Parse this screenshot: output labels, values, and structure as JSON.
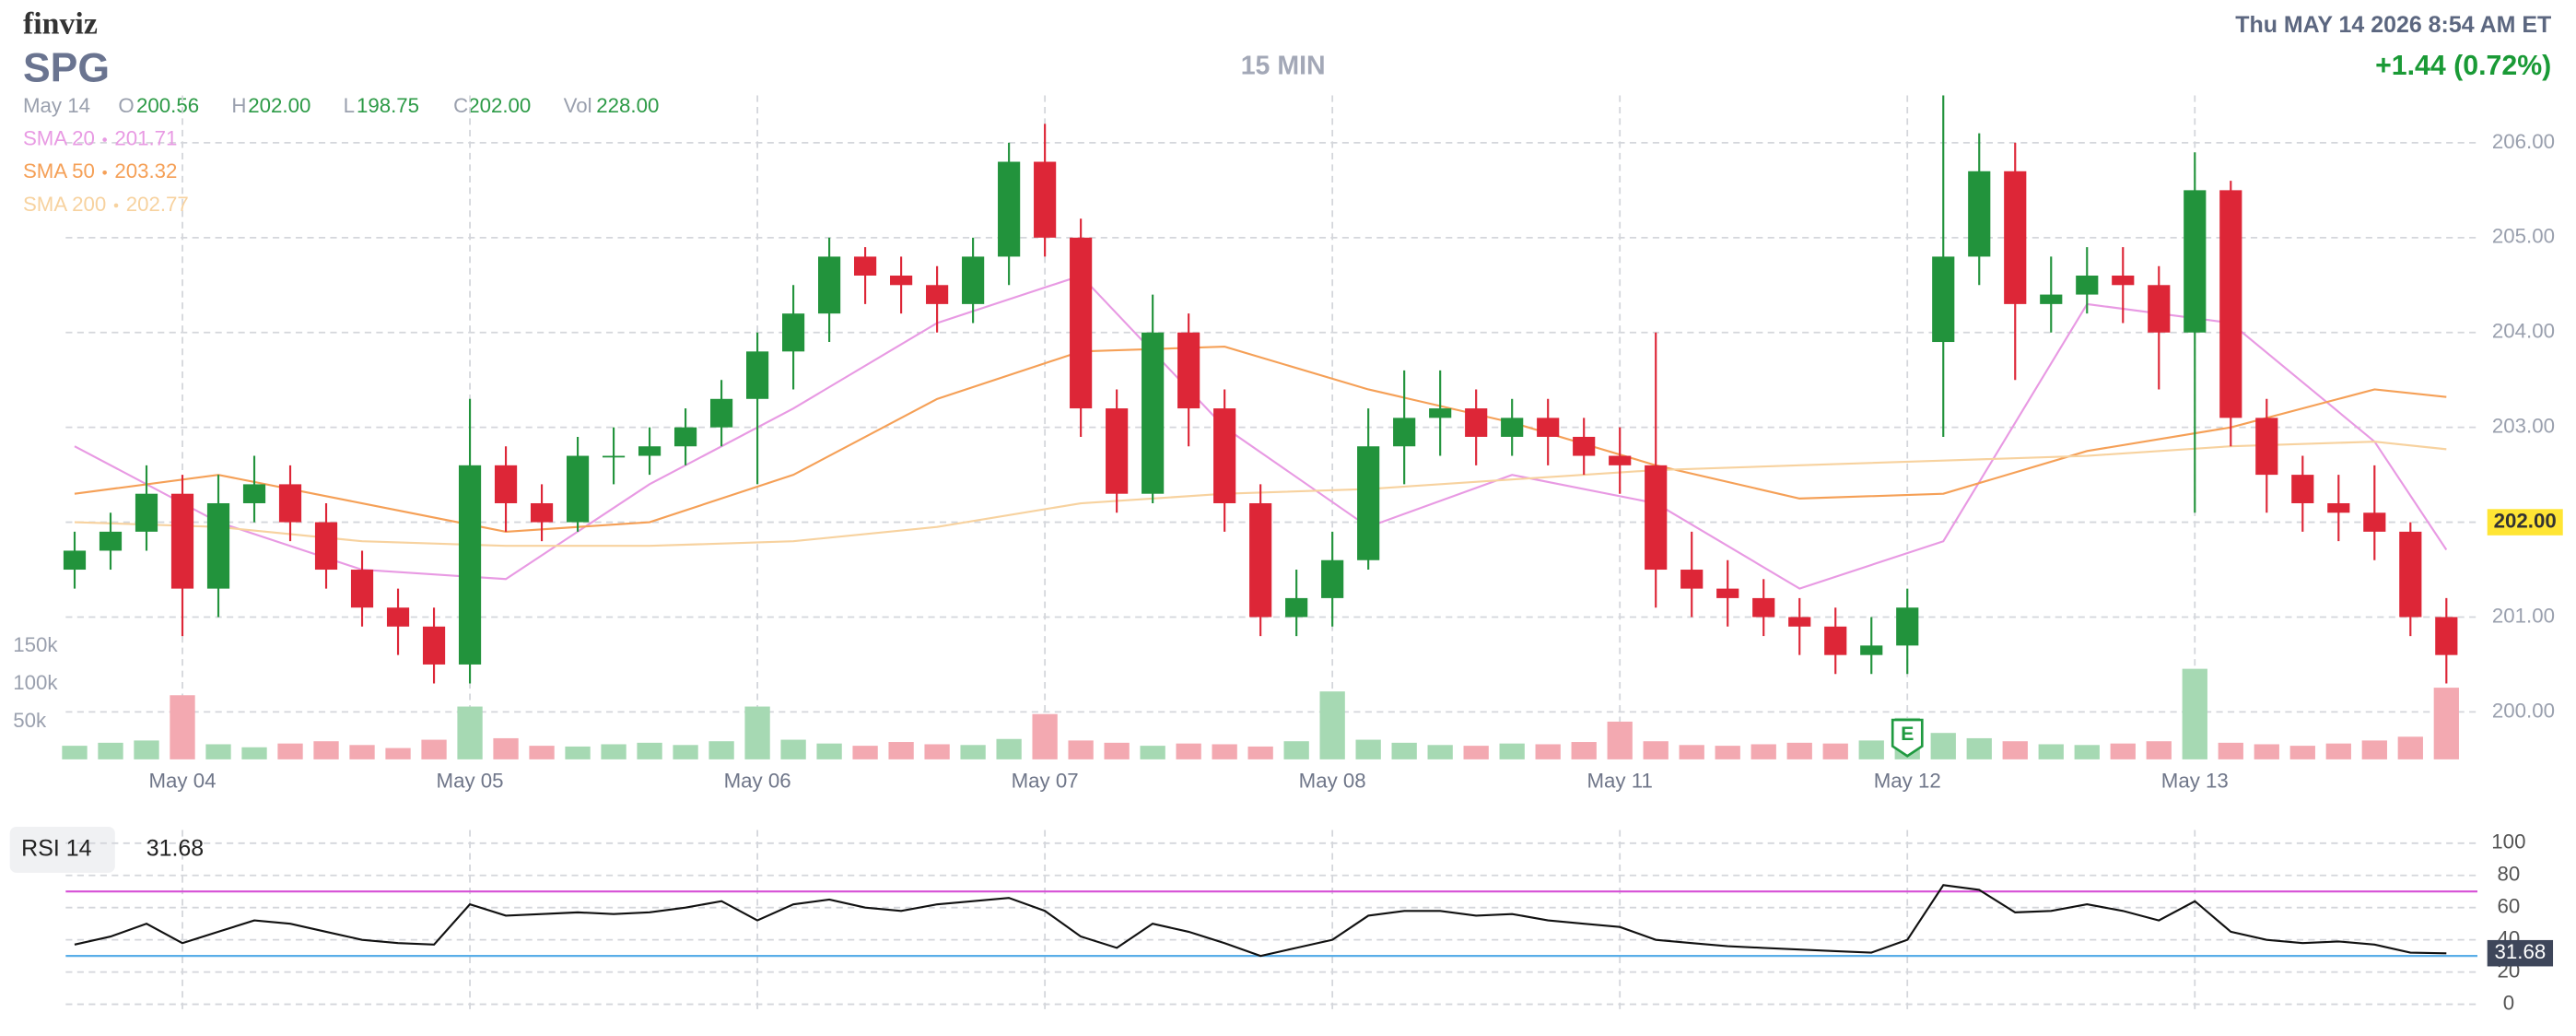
{
  "header": {
    "logo": "finviz",
    "ticker": "SPG",
    "interval": "15 MIN",
    "datetime": "Thu MAY 14 2026 8:54 AM ET",
    "change": "+1.44 (0.72%)",
    "ohlc": {
      "date": "May 14",
      "o_label": "O",
      "o": "200.56",
      "h_label": "H",
      "h": "202.00",
      "l_label": "L",
      "l": "198.75",
      "c_label": "C",
      "c": "202.00",
      "vol_label": "Vol",
      "vol": "228.00"
    }
  },
  "chart_data": [
    {
      "type": "candlestick",
      "x": [
        -0.375,
        -0.25,
        -0.125,
        0,
        0.125,
        0.25,
        0.375,
        0.5,
        0.625,
        0.75,
        0.875,
        1,
        1.125,
        1.25,
        1.375,
        1.5,
        1.625,
        1.75,
        1.875,
        2,
        2.125,
        2.25,
        2.375,
        2.5,
        2.625,
        2.75,
        2.875,
        3,
        3.125,
        3.25,
        3.375,
        3.5,
        3.625,
        3.75,
        3.875,
        4,
        4.125,
        4.25,
        4.375,
        4.5,
        4.625,
        4.75,
        4.875,
        5,
        5.125,
        5.25,
        5.375,
        5.5,
        5.625,
        5.75,
        5.875,
        6,
        6.125,
        6.25,
        6.375,
        6.5,
        6.625,
        6.75,
        6.875,
        7,
        7.125,
        7.25,
        7.375,
        7.5,
        7.625,
        7.75,
        7.875
      ],
      "open": [
        201.5,
        201.7,
        201.9,
        202.3,
        201.3,
        202.2,
        202.4,
        202.0,
        201.5,
        201.1,
        200.9,
        200.5,
        202.6,
        202.2,
        202.0,
        202.7,
        202.7,
        202.8,
        203.0,
        203.3,
        203.8,
        204.2,
        204.8,
        204.6,
        204.5,
        204.3,
        204.8,
        205.8,
        205.0,
        203.2,
        202.3,
        204.0,
        203.2,
        202.2,
        201.0,
        201.2,
        201.6,
        202.8,
        203.1,
        203.2,
        202.9,
        203.1,
        202.9,
        202.7,
        202.6,
        201.5,
        201.3,
        201.2,
        201.0,
        200.9,
        200.6,
        200.7,
        203.9,
        204.8,
        205.7,
        204.3,
        204.4,
        204.6,
        204.5,
        204.0,
        205.5,
        203.1,
        202.5,
        202.2,
        202.1,
        201.9,
        201.0
      ],
      "high": [
        201.9,
        202.1,
        202.6,
        202.5,
        202.5,
        202.7,
        202.6,
        202.2,
        201.7,
        201.3,
        201.1,
        203.3,
        202.8,
        202.4,
        202.9,
        203.0,
        203.0,
        203.2,
        203.5,
        204.0,
        204.5,
        205.0,
        204.9,
        204.8,
        204.7,
        205.0,
        206.0,
        206.2,
        205.2,
        203.4,
        204.4,
        204.2,
        203.4,
        202.4,
        201.5,
        201.9,
        203.2,
        203.6,
        203.6,
        203.4,
        203.3,
        203.3,
        203.1,
        203.0,
        204.0,
        201.9,
        201.6,
        201.4,
        201.2,
        201.1,
        201.0,
        201.3,
        206.5,
        206.1,
        206.0,
        204.8,
        204.9,
        204.9,
        204.7,
        205.9,
        205.6,
        203.3,
        202.7,
        202.5,
        202.6,
        202.0,
        201.2
      ],
      "low": [
        201.3,
        201.5,
        201.7,
        200.8,
        201.0,
        202.0,
        201.8,
        201.3,
        200.9,
        200.6,
        200.3,
        200.3,
        201.9,
        201.8,
        201.9,
        202.4,
        202.5,
        202.6,
        202.8,
        202.4,
        203.4,
        203.9,
        204.3,
        204.2,
        204.0,
        204.1,
        204.5,
        204.8,
        202.9,
        202.1,
        202.2,
        202.8,
        201.9,
        200.8,
        200.8,
        200.9,
        201.5,
        202.4,
        202.7,
        202.6,
        202.7,
        202.6,
        202.5,
        202.3,
        201.1,
        201.0,
        200.9,
        200.8,
        200.6,
        200.4,
        200.4,
        200.4,
        202.9,
        204.5,
        203.5,
        204.0,
        204.2,
        204.1,
        203.4,
        202.1,
        202.8,
        202.1,
        201.9,
        201.8,
        201.6,
        200.8,
        200.3
      ],
      "close": [
        201.7,
        201.9,
        202.3,
        201.3,
        202.2,
        202.4,
        202.0,
        201.5,
        201.1,
        200.9,
        200.5,
        202.6,
        202.2,
        202.0,
        202.7,
        202.7,
        202.8,
        203.0,
        203.3,
        203.8,
        204.2,
        204.8,
        204.6,
        204.5,
        204.3,
        204.8,
        205.8,
        205.0,
        203.2,
        202.3,
        204.0,
        203.2,
        202.2,
        201.0,
        201.2,
        201.6,
        202.8,
        203.1,
        203.2,
        202.9,
        203.1,
        202.9,
        202.7,
        202.6,
        201.5,
        201.3,
        201.2,
        201.0,
        200.9,
        200.6,
        200.7,
        201.1,
        204.8,
        205.7,
        204.3,
        204.4,
        204.6,
        204.5,
        204.0,
        205.5,
        203.1,
        202.5,
        202.2,
        202.1,
        201.9,
        201.0,
        200.6
      ],
      "volume": [
        18000,
        22000,
        25000,
        85000,
        20000,
        16000,
        21000,
        24000,
        19000,
        15000,
        26000,
        70000,
        28000,
        18000,
        17000,
        20000,
        22000,
        19000,
        24000,
        70000,
        26000,
        21000,
        18000,
        23000,
        20000,
        19000,
        27000,
        60000,
        25000,
        22000,
        18000,
        21000,
        20000,
        17000,
        24000,
        90000,
        26000,
        22000,
        19000,
        18000,
        21000,
        20000,
        23000,
        50000,
        24000,
        19000,
        18000,
        20000,
        22000,
        21000,
        25000,
        55000,
        35000,
        28000,
        24000,
        20000,
        19000,
        21000,
        24000,
        120000,
        22000,
        20000,
        18000,
        21000,
        25000,
        30000,
        95000
      ],
      "xlim": [
        -0.406,
        7.983
      ],
      "xticks": [
        {
          "value": 0,
          "label": "May 04"
        },
        {
          "value": 1,
          "label": "May 05"
        },
        {
          "value": 2,
          "label": "May 06"
        },
        {
          "value": 3,
          "label": "May 07"
        },
        {
          "value": 4,
          "label": "May 08"
        },
        {
          "value": 5,
          "label": "May 11"
        },
        {
          "value": 6,
          "label": "May 12"
        },
        {
          "value": 7,
          "label": "May 13"
        }
      ],
      "ylim": [
        199.5,
        206.5
      ],
      "yticks": [
        {
          "value": 200,
          "label": "200.00"
        },
        {
          "value": 201,
          "label": "201.00"
        },
        {
          "value": 202,
          "label": "202.00"
        },
        {
          "value": 203,
          "label": "203.00"
        },
        {
          "value": 204,
          "label": "204.00"
        },
        {
          "value": 205,
          "label": "205.00"
        },
        {
          "value": 206,
          "label": "206.00"
        }
      ],
      "volume_ylim": [
        0,
        880000
      ],
      "volume_ticks": [
        {
          "value": 50000,
          "label": "50k"
        },
        {
          "value": 100000,
          "label": "100k"
        },
        {
          "value": 150000,
          "label": "150k"
        }
      ],
      "up_color": "#22933c",
      "down_color": "#dd2637",
      "up_volume_color": "#a6d9b3",
      "down_volume_color": "#f3a9b1",
      "grid": true,
      "last_price": {
        "value": 202,
        "label": "202.00",
        "color": "#ffe534"
      },
      "event": {
        "x": 6.0,
        "label": "E",
        "color": "#1f9a40"
      },
      "overlays": [
        {
          "name": "SMA 20",
          "value_label": "201.71",
          "color": "#e89ae3",
          "x": [
            -0.375,
            0.125,
            0.625,
            1.125,
            1.625,
            2.125,
            2.625,
            3.125,
            3.625,
            4.125,
            4.625,
            5.125,
            5.625,
            6.125,
            6.625,
            7.125,
            7.625,
            7.875
          ],
          "values": [
            202.8,
            202.0,
            201.5,
            201.4,
            202.4,
            203.2,
            204.1,
            204.6,
            203.0,
            201.95,
            202.5,
            202.2,
            201.3,
            201.8,
            204.3,
            204.1,
            202.85,
            201.71
          ]
        },
        {
          "name": "SMA 50",
          "value_label": "203.32",
          "color": "#f5a057",
          "x": [
            -0.375,
            0.125,
            0.625,
            1.125,
            1.625,
            2.125,
            2.625,
            3.125,
            3.625,
            4.125,
            4.625,
            5.125,
            5.625,
            6.125,
            6.625,
            7.125,
            7.625,
            7.875
          ],
          "values": [
            202.3,
            202.5,
            202.2,
            201.9,
            202.0,
            202.5,
            203.3,
            203.8,
            203.85,
            203.4,
            203.05,
            202.6,
            202.25,
            202.3,
            202.75,
            203.0,
            203.4,
            203.32
          ]
        },
        {
          "name": "SMA 200",
          "value_label": "202.77",
          "color": "#f7d29f",
          "x": [
            -0.375,
            0.125,
            0.625,
            1.125,
            1.625,
            2.125,
            2.625,
            3.125,
            3.625,
            4.125,
            4.625,
            5.125,
            5.625,
            6.125,
            6.625,
            7.125,
            7.625,
            7.875
          ],
          "values": [
            202.0,
            201.95,
            201.8,
            201.75,
            201.75,
            201.8,
            201.95,
            202.2,
            202.3,
            202.35,
            202.45,
            202.55,
            202.6,
            202.65,
            202.7,
            202.8,
            202.85,
            202.77
          ]
        }
      ]
    },
    {
      "type": "line",
      "name": "RSI 14",
      "value_label": "31.68",
      "color": "#111111",
      "x": [
        -0.375,
        -0.25,
        -0.125,
        0,
        0.125,
        0.25,
        0.375,
        0.5,
        0.625,
        0.75,
        0.875,
        1,
        1.125,
        1.25,
        1.375,
        1.5,
        1.625,
        1.75,
        1.875,
        2,
        2.125,
        2.25,
        2.375,
        2.5,
        2.625,
        2.75,
        2.875,
        3,
        3.125,
        3.25,
        3.375,
        3.5,
        3.625,
        3.75,
        3.875,
        4,
        4.125,
        4.25,
        4.375,
        4.5,
        4.625,
        4.75,
        4.875,
        5,
        5.125,
        5.25,
        5.375,
        5.5,
        5.625,
        5.75,
        5.875,
        6,
        6.125,
        6.25,
        6.375,
        6.5,
        6.625,
        6.75,
        6.875,
        7,
        7.125,
        7.25,
        7.375,
        7.5,
        7.625,
        7.75,
        7.875
      ],
      "values": [
        37,
        42,
        50,
        38,
        45,
        52,
        50,
        45,
        40,
        38,
        37,
        62,
        55,
        56,
        57,
        56,
        57,
        60,
        64,
        52,
        62,
        65,
        60,
        58,
        62,
        64,
        66,
        58,
        42,
        35,
        50,
        45,
        38,
        30,
        35,
        40,
        55,
        58,
        58,
        55,
        56,
        52,
        50,
        48,
        40,
        38,
        36,
        35,
        34,
        33,
        32,
        40,
        74,
        71,
        57,
        58,
        62,
        58,
        52,
        64,
        45,
        40,
        38,
        39,
        37,
        32,
        31.68
      ],
      "xlim": [
        -0.406,
        7.983
      ],
      "ylim": [
        0,
        100
      ],
      "yticks": [
        0,
        20,
        40,
        60,
        80,
        100
      ],
      "grid": true,
      "levels": [
        {
          "value": 70,
          "color": "#d64fd6"
        },
        {
          "value": 30,
          "color": "#5aaee8"
        }
      ]
    }
  ]
}
